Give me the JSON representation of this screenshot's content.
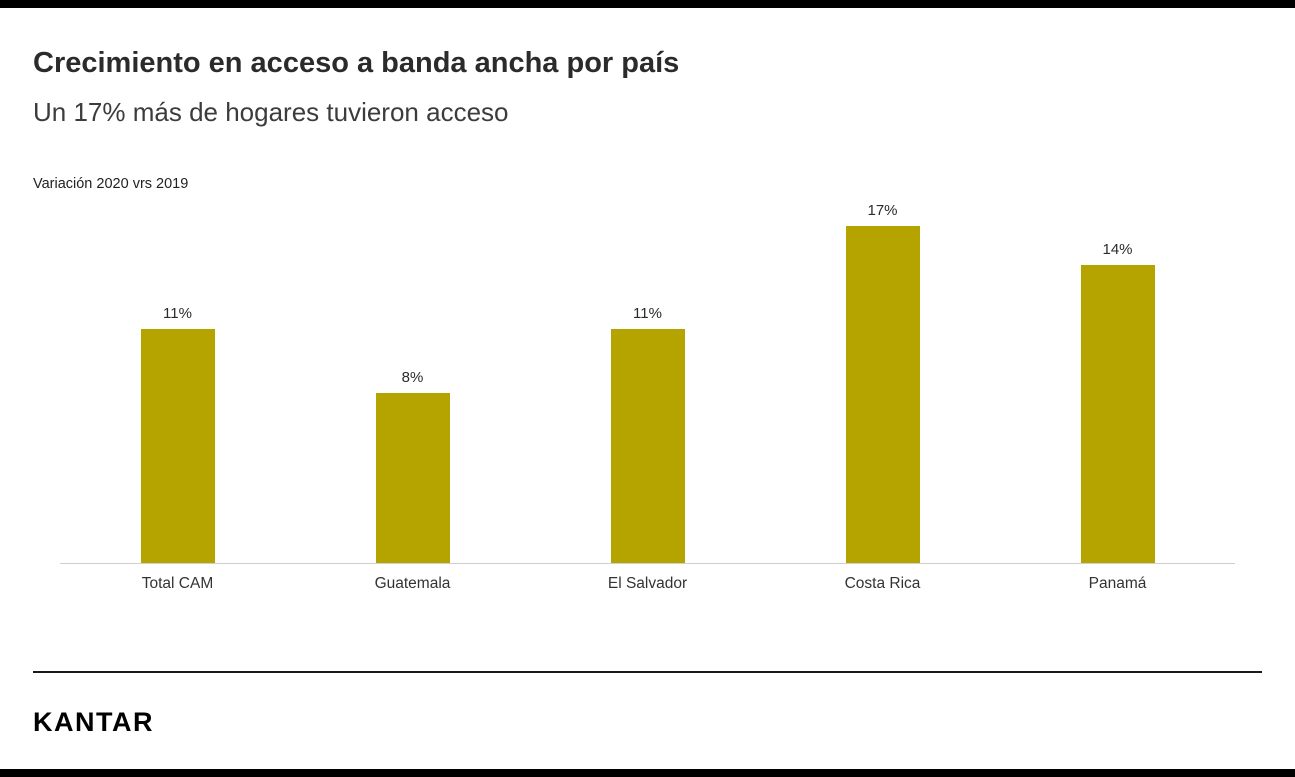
{
  "header": {
    "title": "Crecimiento en acceso a banda ancha por país",
    "subtitle": "Un 17% más de hogares tuvieron acceso"
  },
  "chart_data": {
    "type": "bar",
    "title": "Variación 2020 vrs 2019",
    "categories": [
      "Total CAM",
      "Guatemala",
      "El Salvador",
      "Costa Rica",
      "Panamá"
    ],
    "values": [
      11,
      8,
      11,
      17,
      14
    ],
    "value_suffix": "%",
    "data_labels": true,
    "bar_color": "#b5a300",
    "xlabel": "",
    "ylabel": "",
    "ylim": [
      0,
      17
    ],
    "grid": false,
    "legend": "none"
  },
  "footer": {
    "brand": "KANTAR"
  },
  "colors": {
    "accent_bar": "#000000",
    "bar_fill": "#b5a300",
    "axis_line": "#cfcfcf",
    "divider": "#1a1a1a"
  }
}
